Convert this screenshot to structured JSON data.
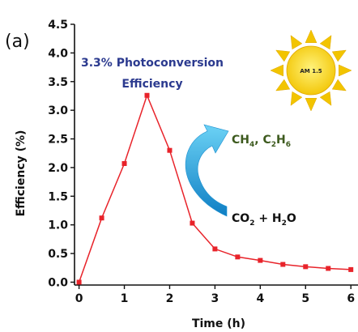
{
  "panel_label": "(a)",
  "annotations": {
    "headline_line1": "3.3% Photoconversion",
    "headline_line2": "Efficiency",
    "products": {
      "a": "CH",
      "a_sub": "4",
      "sep": ", C",
      "b_sub1": "2",
      "b_mid": "H",
      "b_sub2": "6"
    },
    "reactants": {
      "a": "CO",
      "a_sub": "2",
      "rest": " + H",
      "b_sub": "2",
      "end": "O"
    },
    "sun_label": "AM 1.5"
  },
  "colors": {
    "series": "#e8232a",
    "headline": "#2b3a8f",
    "products": "#3d5a1e",
    "arrow": "#29a9e1",
    "sun": "#f7d117"
  },
  "chart_data": {
    "type": "line",
    "xlabel": "Time (h)",
    "ylabel": "Efficiency (%)",
    "xlim": [
      -0.1,
      6.05
    ],
    "ylim": [
      -0.05,
      4.5
    ],
    "xticks": [
      0,
      1,
      2,
      3,
      4,
      5,
      6
    ],
    "yticks": [
      "0.0",
      "0.5",
      "1.0",
      "1.5",
      "2.0",
      "2.5",
      "3.0",
      "3.5",
      "4.0",
      "4.5"
    ],
    "grid": false,
    "series": [
      {
        "x": [
          0,
          0.5,
          1.0,
          1.5,
          2.0,
          2.5,
          3.0,
          3.5,
          4.0,
          4.5,
          5.0,
          5.5,
          6.0
        ],
        "y": [
          0.0,
          1.12,
          2.07,
          3.26,
          2.3,
          1.03,
          0.58,
          0.44,
          0.38,
          0.31,
          0.27,
          0.24,
          0.22
        ]
      }
    ]
  }
}
